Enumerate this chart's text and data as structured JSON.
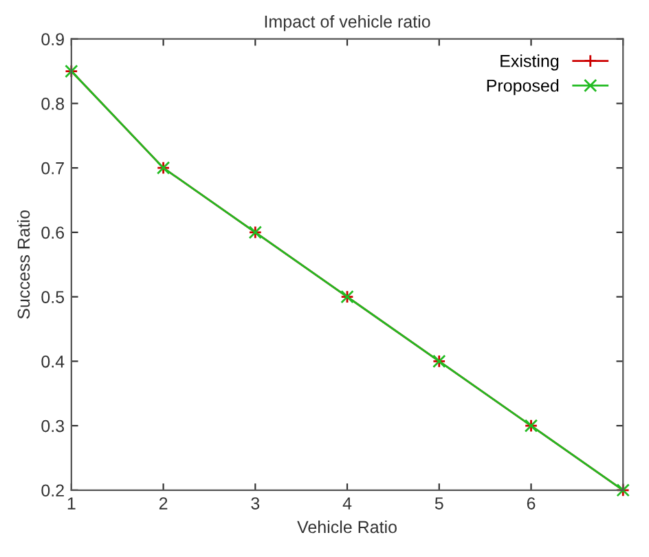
{
  "chart_data": {
    "type": "line",
    "title": "Impact of vehicle ratio",
    "xlabel": "Vehicle Ratio",
    "ylabel": "Success Ratio",
    "x": [
      1,
      2,
      3,
      4,
      5,
      6,
      7
    ],
    "series": [
      {
        "name": "Existing",
        "color": "#cc0000",
        "marker": "plus",
        "values": [
          0.85,
          0.7,
          0.6,
          0.5,
          0.4,
          0.3,
          0.2
        ]
      },
      {
        "name": "Proposed",
        "color": "#22bb22",
        "marker": "cross",
        "values": [
          0.85,
          0.7,
          0.6,
          0.5,
          0.4,
          0.3,
          0.2
        ]
      }
    ],
    "xlim": [
      1,
      7
    ],
    "xticks": [
      1,
      2,
      3,
      4,
      5,
      6,
      {
        "value": 7,
        "label": null
      }
    ],
    "ylim": [
      0.2,
      0.9
    ],
    "yticks": [
      0.2,
      0.3,
      0.4,
      0.5,
      0.6,
      0.7,
      0.8,
      0.9
    ],
    "grid": false,
    "legend": "top right",
    "line_style": "solid"
  }
}
